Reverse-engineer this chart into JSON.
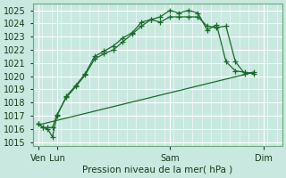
{
  "bg_color": "#c8e8e0",
  "plot_bg": "#c8e8e0",
  "grid_color": "#ffffff",
  "line_color": "#1a6b2a",
  "xlabel": "Pression niveau de la mer( hPa )",
  "ylim": [
    1015,
    1025.5
  ],
  "yticks": [
    1015,
    1016,
    1017,
    1018,
    1019,
    1020,
    1021,
    1022,
    1023,
    1024,
    1025
  ],
  "xtick_labels": [
    "Ven",
    "Lun",
    "Sam",
    "Dim"
  ],
  "xtick_positions": [
    0,
    1,
    7,
    12
  ],
  "vline_positions": [
    0,
    1,
    7,
    12
  ],
  "series1_x": [
    0,
    0.25,
    0.5,
    0.75,
    1.0,
    1.5,
    2.0,
    2.5,
    3.0,
    3.5,
    4.0,
    4.5,
    5.0,
    5.5,
    6.0,
    6.5,
    7.0,
    7.5,
    8.0,
    8.5,
    9.0,
    9.5,
    10.0,
    10.5,
    11.0,
    11.5
  ],
  "series1_y": [
    1016.4,
    1016.1,
    1016.0,
    1015.4,
    1017.0,
    1018.5,
    1019.3,
    1020.2,
    1021.5,
    1021.9,
    1022.3,
    1022.9,
    1023.3,
    1024.1,
    1024.3,
    1024.1,
    1024.5,
    1024.5,
    1024.5,
    1024.5,
    1023.8,
    1023.7,
    1023.8,
    1021.1,
    1020.2,
    1020.3
  ],
  "series2_x": [
    0,
    0.25,
    0.5,
    0.75,
    1.0,
    1.5,
    2.0,
    2.5,
    3.0,
    3.5,
    4.0,
    4.5,
    5.0,
    5.5,
    6.0,
    6.5,
    7.0,
    7.5,
    8.0,
    8.5,
    9.0,
    9.5,
    10.0,
    10.5,
    11.0,
    11.5
  ],
  "series2_y": [
    1016.4,
    1016.1,
    1016.1,
    1016.1,
    1017.1,
    1018.4,
    1019.2,
    1020.1,
    1021.3,
    1021.7,
    1022.0,
    1022.6,
    1023.2,
    1023.8,
    1024.3,
    1024.5,
    1025.0,
    1024.8,
    1025.0,
    1024.8,
    1023.5,
    1023.9,
    1021.1,
    1020.4,
    1020.3,
    1020.2
  ],
  "series3_x": [
    0,
    11.5
  ],
  "series3_y": [
    1016.3,
    1020.3
  ],
  "xlim": [
    -0.3,
    13.0
  ]
}
